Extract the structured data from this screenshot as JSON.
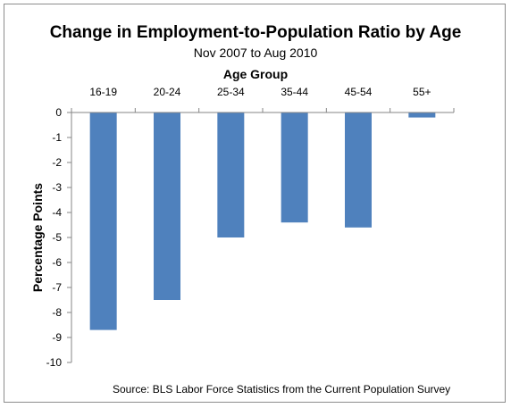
{
  "chart_data": {
    "type": "bar",
    "title": "Change in Employment-to-Population Ratio by Age",
    "subtitle": "Nov 2007 to Aug 2010",
    "xlabel": "Age Group",
    "ylabel": "Percentage Points",
    "categories": [
      "16-19",
      "20-24",
      "25-34",
      "35-44",
      "45-54",
      "55+"
    ],
    "values": [
      -8.7,
      -7.5,
      -5.0,
      -4.4,
      -4.6,
      -0.2
    ],
    "ylim": [
      -10,
      0
    ],
    "yticks": [
      0,
      -1,
      -2,
      -3,
      -4,
      -5,
      -6,
      -7,
      -8,
      -9,
      -10
    ],
    "x_axis_position": "top",
    "grid": false,
    "legend": "none",
    "bar_color": "#4f81bd",
    "source": "Source: BLS Labor Force Statistics from the Current Population Survey"
  }
}
